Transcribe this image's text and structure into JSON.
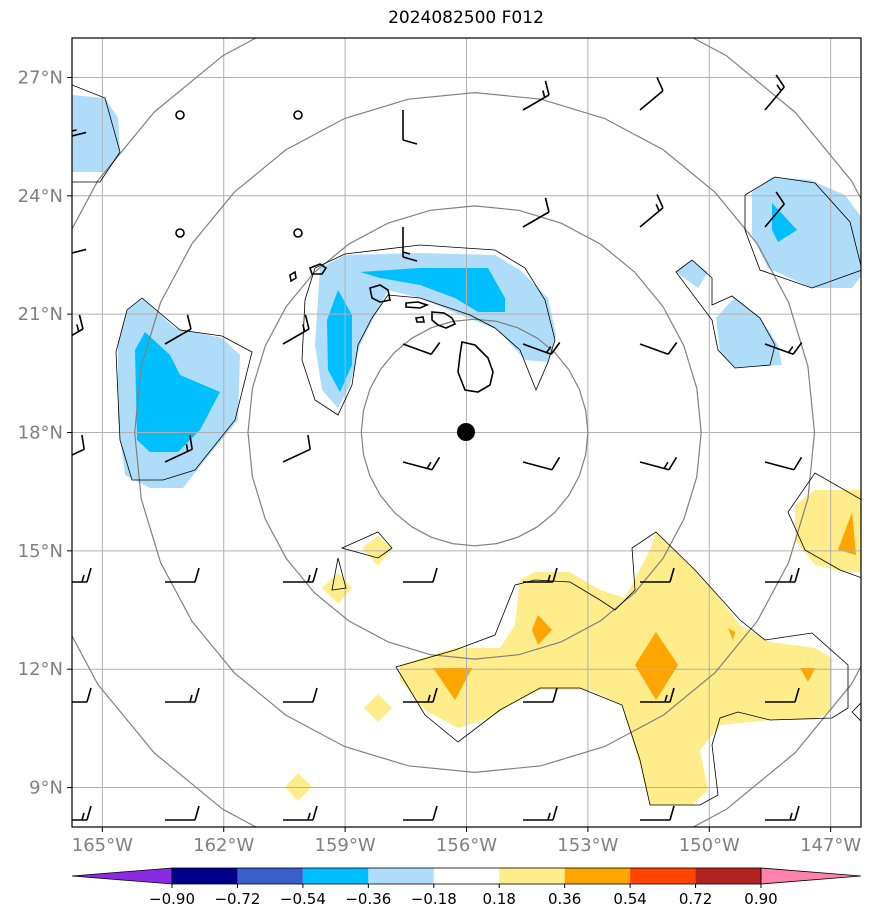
{
  "title": "2024082500 F012",
  "map": {
    "lon_range": [
      -165.75,
      -146.25
    ],
    "lat_range": [
      8.0,
      28.0
    ],
    "center": {
      "lon": -155.8,
      "lat": 18.0
    },
    "range_rings_deg": [
      2.8,
      5.6,
      8.4,
      11.2
    ],
    "lat_ticks": [
      {
        "value": 27,
        "label": "27°N"
      },
      {
        "value": 24,
        "label": "24°N"
      },
      {
        "value": 21,
        "label": "21°N"
      },
      {
        "value": 18,
        "label": "18°N"
      },
      {
        "value": 15,
        "label": "15°N"
      },
      {
        "value": 12,
        "label": "12°N"
      },
      {
        "value": 9,
        "label": "9°N"
      }
    ],
    "lon_ticks": [
      {
        "value": -165,
        "label": "165°W"
      },
      {
        "value": -162,
        "label": "162°W"
      },
      {
        "value": -159,
        "label": "159°W"
      },
      {
        "value": -156,
        "label": "156°W"
      },
      {
        "value": -153,
        "label": "153°W"
      },
      {
        "value": -150,
        "label": "150°W"
      },
      {
        "value": -147,
        "label": "147°W"
      }
    ],
    "grid": true,
    "colors": {
      "grid": "#b0b0b0",
      "ring": "#808080",
      "coast": "#000000",
      "contour": "#000000",
      "neg_light": "#afdcf8",
      "neg_mid": "#00bfff",
      "pos_light": "#ffec8b",
      "pos_mid": "#ffa500"
    }
  },
  "colorbar": {
    "boundaries": [
      "−0.90",
      "−0.72",
      "−0.54",
      "−0.36",
      "−0.18",
      "0.18",
      "0.36",
      "0.54",
      "0.72",
      "0.90"
    ],
    "colors": [
      "#8a2be2",
      "#00008b",
      "#3a5fcd",
      "#00bfff",
      "#afdcf8",
      "#ffffff",
      "#ffec8b",
      "#ffa500",
      "#ff4500",
      "#b22222",
      "#ff82ab"
    ]
  }
}
